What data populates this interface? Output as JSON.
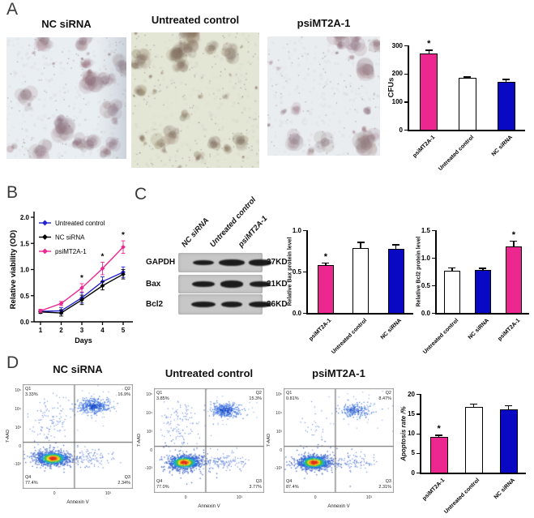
{
  "panels": {
    "a": "A",
    "b": "B",
    "c": "C",
    "d": "D"
  },
  "colors": {
    "pink": "#EC2790",
    "blue": "#0909C3",
    "line_blue": "#2222CC",
    "black": "#000000",
    "white_bar": "#FFFFFF"
  },
  "panelA": {
    "images": [
      {
        "title": "NC siRNA"
      },
      {
        "title": "Untreated control"
      },
      {
        "title": "psiMT2A-1"
      }
    ]
  },
  "western": {
    "col_labels": [
      "NC siRNA",
      "Untreated control",
      "psiMT2A-1"
    ],
    "rows": [
      {
        "protein": "GAPDH",
        "kd": "37KD"
      },
      {
        "protein": "Bax",
        "kd": "21KD"
      },
      {
        "protein": "Bcl2",
        "kd": "26KD"
      }
    ]
  },
  "flow": {
    "ylabel": "7-AAD",
    "xlabel": "Annexin V",
    "yticks": [
      "10⁵",
      "10⁴",
      "10³",
      "0",
      "-10³"
    ],
    "xticks": [
      "0",
      "10³"
    ],
    "plots": [
      {
        "title": "NC siRNA",
        "q1": "Q1",
        "q1_pct": "3.33%",
        "q2": "Q2",
        "q2_pct": "16.9%",
        "q3": "Q3",
        "q3_pct": "2.34%",
        "q4": "Q4",
        "q4_pct": "77.4%"
      },
      {
        "title": "Untreated control",
        "q1": "Q1",
        "q1_pct": "3.85%",
        "q2": "Q2",
        "q2_pct": "15.3%",
        "q3": "Q3",
        "q3_pct": "3.77%",
        "q4": "Q4",
        "q4_pct": "77.0%"
      },
      {
        "title": "psiMT2A-1",
        "q1": "Q1",
        "q1_pct": "0.81%",
        "q2": "Q2",
        "q2_pct": "8.47%",
        "q3": "Q3",
        "q3_pct": "2.31%",
        "q4": "Q4",
        "q4_pct": "87.4%"
      }
    ]
  },
  "chart_data": [
    {
      "id": "cfus",
      "type": "bar",
      "title": "",
      "xlabel": "",
      "ylabel": "CFUs",
      "ylim": [
        0,
        300
      ],
      "yticks": [
        "0",
        "100",
        "200",
        "300"
      ],
      "grid": false,
      "legend_position": "none",
      "categories": [
        "psiMT2A-1",
        "Untreated control",
        "NC siRNA"
      ],
      "values": [
        272,
        185,
        170
      ],
      "errors": [
        13,
        5,
        11
      ],
      "colors": [
        "#EC2790",
        "#FFFFFF",
        "#0909C3"
      ],
      "annotations": [
        "*",
        "",
        ""
      ]
    },
    {
      "id": "viability",
      "type": "line",
      "title": "",
      "xlabel": "Days",
      "ylabel": "Relative viability (OD)",
      "x": [
        1,
        2,
        3,
        4,
        5
      ],
      "ylim": [
        0,
        2.0
      ],
      "yticks": [
        "0.0",
        "0.5",
        "1.0",
        "1.5",
        "2.0"
      ],
      "grid": false,
      "legend_position": "top-left",
      "series": [
        {
          "name": "Untreated control",
          "color": "#2222CC",
          "values": [
            0.2,
            0.21,
            0.46,
            0.77,
            0.95
          ],
          "errors": [
            0.03,
            0.06,
            0.1,
            0.09,
            0.1
          ],
          "sig_days": []
        },
        {
          "name": "NC siRNA",
          "color": "#000000",
          "values": [
            0.19,
            0.17,
            0.42,
            0.69,
            0.91
          ],
          "errors": [
            0.03,
            0.06,
            0.09,
            0.08,
            0.09
          ],
          "sig_days": []
        },
        {
          "name": "psiMT2A-1",
          "color": "#EC2790",
          "values": [
            0.21,
            0.35,
            0.65,
            1.02,
            1.43
          ],
          "errors": [
            0.03,
            0.04,
            0.08,
            0.12,
            0.12
          ],
          "sig_days": [
            3,
            4,
            5
          ]
        }
      ]
    },
    {
      "id": "bax",
      "type": "bar",
      "title": "",
      "xlabel": "",
      "ylabel": "Relative Bax protein level",
      "ylim": [
        0,
        1.0
      ],
      "yticks": [
        "0.0",
        "0.5",
        "1.0"
      ],
      "grid": false,
      "legend_position": "none",
      "categories": [
        "psiMT2A-1",
        "Untreated control",
        "NC siRNA"
      ],
      "values": [
        0.58,
        0.78,
        0.77
      ],
      "errors": [
        0.03,
        0.08,
        0.06
      ],
      "colors": [
        "#EC2790",
        "#FFFFFF",
        "#0909C3"
      ],
      "annotations": [
        "*",
        "",
        ""
      ]
    },
    {
      "id": "bcl2",
      "type": "bar",
      "title": "",
      "xlabel": "",
      "ylabel": "Relative Bcl2 protein level",
      "ylim": [
        0,
        1.5
      ],
      "yticks": [
        "0.0",
        "0.5",
        "1.0",
        "1.5"
      ],
      "grid": false,
      "legend_position": "none",
      "categories": [
        "Untreated control",
        "NC siRNA",
        "psiMT2A-1"
      ],
      "values": [
        0.77,
        0.78,
        1.21
      ],
      "errors": [
        0.06,
        0.04,
        0.1
      ],
      "colors": [
        "#FFFFFF",
        "#0909C3",
        "#EC2790"
      ],
      "annotations": [
        "",
        "",
        "*"
      ]
    },
    {
      "id": "apoptosis",
      "type": "bar",
      "title": "",
      "xlabel": "",
      "ylabel": "Apoptosis rate /%",
      "ylim": [
        0,
        20
      ],
      "yticks": [
        "0",
        "5",
        "10",
        "15",
        "20"
      ],
      "grid": false,
      "legend_position": "none",
      "categories": [
        "psiMT2A-1",
        "Untreated control",
        "NC siRNA"
      ],
      "values": [
        9.0,
        16.7,
        16.0
      ],
      "errors": [
        0.6,
        0.9,
        1.1
      ],
      "colors": [
        "#EC2790",
        "#FFFFFF",
        "#0909C3"
      ],
      "annotations": [
        "*",
        "",
        ""
      ]
    }
  ]
}
